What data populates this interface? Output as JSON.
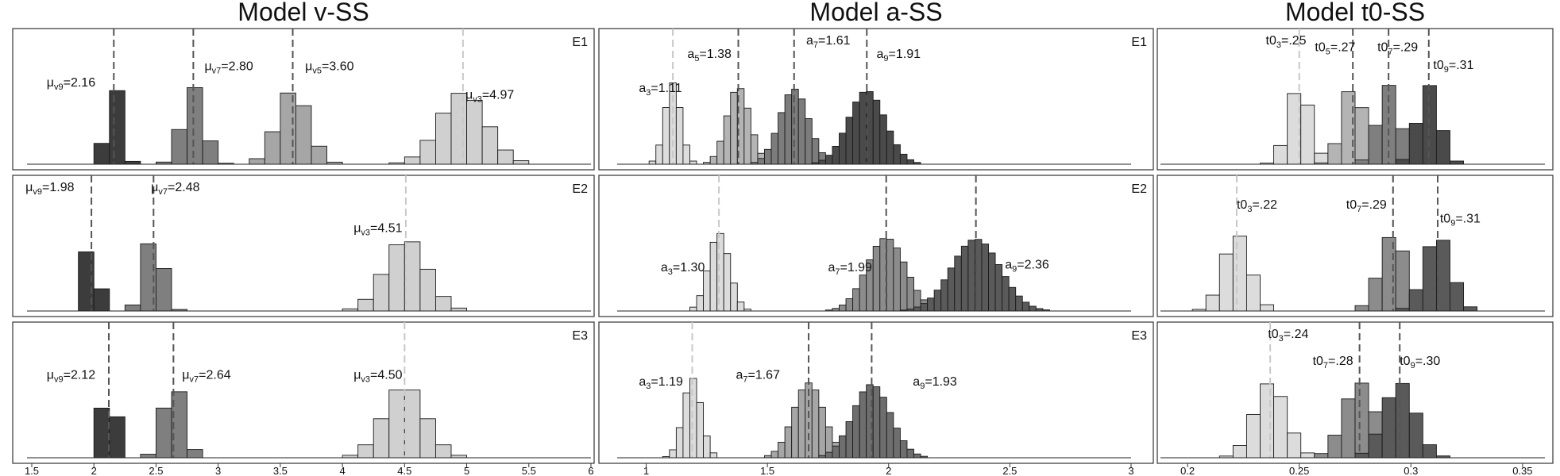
{
  "chart_data": [
    {
      "type": "histogram",
      "title": "Model v-SS",
      "xlim": [
        1.5,
        6
      ],
      "x_ticks": [
        "1.5",
        "2",
        "2.5",
        "3",
        "3.5",
        "4",
        "4.5",
        "5",
        "5.5",
        "6"
      ],
      "rows": [
        {
          "label": "E1",
          "annotations": [
            {
              "prefix": "μ",
              "sub": "v9",
              "value": "=2.16",
              "mean": 2.16,
              "lx": 1.62,
              "ly": 0.62,
              "shade": "#3c3c3c"
            },
            {
              "prefix": "μ",
              "sub": "v7",
              "value": "=2.80",
              "mean": 2.8,
              "lx": 2.89,
              "ly": 0.74,
              "shade": "#7f7f7f"
            },
            {
              "prefix": "μ",
              "sub": "v5",
              "value": "=3.60",
              "mean": 3.6,
              "lx": 3.7,
              "ly": 0.74,
              "shade": "#a6a6a6"
            },
            {
              "prefix": "μ",
              "sub": "v3",
              "value": "=4.97",
              "mean": 4.97,
              "lx": 4.99,
              "ly": 0.53,
              "shade": "#d0d0d0"
            }
          ]
        },
        {
          "label": "E2",
          "annotations": [
            {
              "prefix": "μ",
              "sub": "v9",
              "value": "=1.98",
              "mean": 1.98,
              "lx": 1.45,
              "ly": 0.93,
              "shade": "#3c3c3c"
            },
            {
              "prefix": "μ",
              "sub": "v7",
              "value": "=2.48",
              "mean": 2.48,
              "lx": 2.46,
              "ly": 0.93,
              "shade": "#7f7f7f"
            },
            {
              "prefix": "μ",
              "sub": "v3",
              "value": "=4.51",
              "mean": 4.51,
              "lx": 4.09,
              "ly": 0.63,
              "shade": "#d0d0d0"
            }
          ]
        },
        {
          "label": "E3",
          "annotations": [
            {
              "prefix": "μ",
              "sub": "v9",
              "value": "=2.12",
              "mean": 2.12,
              "lx": 1.62,
              "ly": 0.63,
              "shade": "#3c3c3c"
            },
            {
              "prefix": "μ",
              "sub": "v7",
              "value": "=2.64",
              "mean": 2.64,
              "lx": 2.71,
              "ly": 0.63,
              "shade": "#7f7f7f"
            },
            {
              "prefix": "μ",
              "sub": "v3",
              "value": "=4.50",
              "mean": 4.5,
              "lx": 4.09,
              "ly": 0.63,
              "shade": "#d0d0d0"
            }
          ]
        }
      ]
    },
    {
      "type": "histogram",
      "title": "Model a-SS",
      "xlim": [
        0.9,
        3
      ],
      "x_ticks": [
        "1",
        "1.5",
        "2",
        "2.5",
        "3"
      ],
      "rows": [
        {
          "label": "E1",
          "annotations": [
            {
              "prefix": "a",
              "sub": "3",
              "value": "=1.11",
              "mean": 1.11,
              "lx": 0.97,
              "ly": 0.58,
              "shade": "#dcdcdc"
            },
            {
              "prefix": "a",
              "sub": "5",
              "value": "=1.38",
              "mean": 1.38,
              "lx": 1.17,
              "ly": 0.83,
              "shade": "#b4b4b4"
            },
            {
              "prefix": "a",
              "sub": "7",
              "value": "=1.61",
              "mean": 1.61,
              "lx": 1.66,
              "ly": 0.93,
              "shade": "#7c7c7c"
            },
            {
              "prefix": "a",
              "sub": "9",
              "value": "=1.91",
              "mean": 1.91,
              "lx": 1.95,
              "ly": 0.83,
              "shade": "#4a4a4a"
            }
          ]
        },
        {
          "label": "E2",
          "annotations": [
            {
              "prefix": "a",
              "sub": "3",
              "value": "=1.30",
              "mean": 1.3,
              "lx": 1.06,
              "ly": 0.34,
              "shade": "#dcdcdc"
            },
            {
              "prefix": "a",
              "sub": "7",
              "value": "=1.99",
              "mean": 1.99,
              "lx": 1.75,
              "ly": 0.34,
              "shade": "#8c8c8c"
            },
            {
              "prefix": "a",
              "sub": "9",
              "value": "=2.36",
              "mean": 2.36,
              "lx": 2.48,
              "ly": 0.36,
              "shade": "#5a5a5a"
            }
          ]
        },
        {
          "label": "E3",
          "annotations": [
            {
              "prefix": "a",
              "sub": "3",
              "value": "=1.19",
              "mean": 1.19,
              "lx": 0.97,
              "ly": 0.58,
              "shade": "#dcdcdc"
            },
            {
              "prefix": "a",
              "sub": "7",
              "value": "=1.67",
              "mean": 1.67,
              "lx": 1.37,
              "ly": 0.63,
              "shade": "#a6a6a6"
            },
            {
              "prefix": "a",
              "sub": "9",
              "value": "=1.93",
              "mean": 1.93,
              "lx": 2.1,
              "ly": 0.58,
              "shade": "#6e6e6e"
            }
          ]
        }
      ]
    },
    {
      "type": "histogram",
      "title": "Model t0-SS",
      "xlim": [
        0.19,
        0.36
      ],
      "x_ticks": [
        "0.2",
        "0.25",
        "0.3",
        "0.35"
      ],
      "rows": [
        {
          "label": "",
          "annotations": [
            {
              "prefix": "t0",
              "sub": "3",
              "value": "=.25",
              "mean": 0.25,
              "lx": 0.235,
              "ly": 0.93,
              "shade": "#dcdcdc"
            },
            {
              "prefix": "t0",
              "sub": "5",
              "value": "=.27",
              "mean": 0.274,
              "lx": 0.257,
              "ly": 0.88,
              "shade": "#b4b4b4"
            },
            {
              "prefix": "t0",
              "sub": "7",
              "value": "=.29",
              "mean": 0.29,
              "lx": 0.285,
              "ly": 0.88,
              "shade": "#7f7f7f"
            },
            {
              "prefix": "t0",
              "sub": "9",
              "value": "=.31",
              "mean": 0.308,
              "lx": 0.31,
              "ly": 0.75,
              "shade": "#4a4a4a"
            }
          ]
        },
        {
          "label": "",
          "annotations": [
            {
              "prefix": "t0",
              "sub": "3",
              "value": "=.22",
              "mean": 0.222,
              "lx": 0.222,
              "ly": 0.8,
              "shade": "#dcdcdc"
            },
            {
              "prefix": "t0",
              "sub": "7",
              "value": "=.29",
              "mean": 0.292,
              "lx": 0.271,
              "ly": 0.8,
              "shade": "#8c8c8c"
            },
            {
              "prefix": "t0",
              "sub": "9",
              "value": "=.31",
              "mean": 0.312,
              "lx": 0.313,
              "ly": 0.7,
              "shade": "#5a5a5a"
            }
          ]
        },
        {
          "label": "",
          "annotations": [
            {
              "prefix": "t0",
              "sub": "3",
              "value": "=.24",
              "mean": 0.237,
              "lx": 0.236,
              "ly": 0.93,
              "shade": "#dcdcdc"
            },
            {
              "prefix": "t0",
              "sub": "7",
              "value": "=.28",
              "mean": 0.277,
              "lx": 0.256,
              "ly": 0.73,
              "shade": "#8c8c8c"
            },
            {
              "prefix": "t0",
              "sub": "9",
              "value": "=.30",
              "mean": 0.295,
              "lx": 0.295,
              "ly": 0.73,
              "shade": "#5a5a5a"
            }
          ]
        }
      ]
    }
  ]
}
